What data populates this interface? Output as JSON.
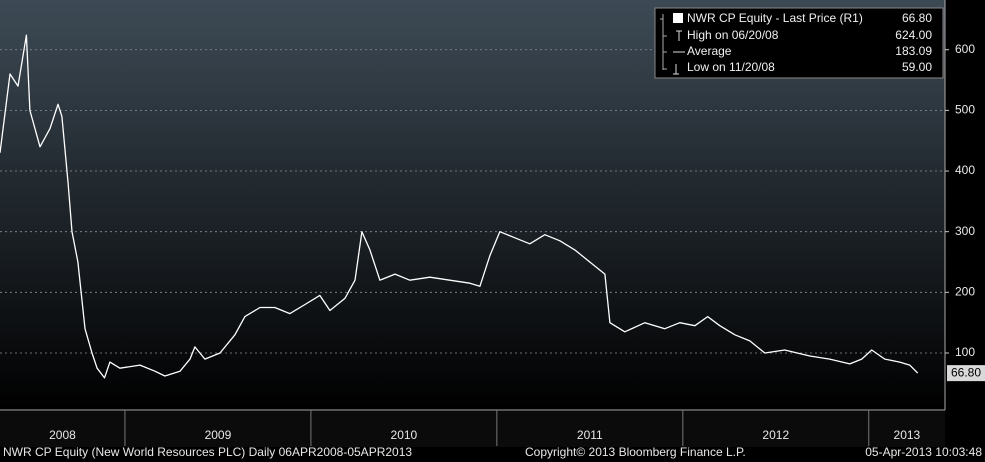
{
  "chart_data": {
    "type": "line",
    "series": [
      {
        "name": "NWR CP Equity - Last Price (R1)",
        "color": "#ffffff",
        "x": [
          2008.328,
          2008.382,
          2008.425,
          2008.47,
          2008.489,
          2008.543,
          2008.597,
          2008.64,
          2008.661,
          2008.694,
          2008.715,
          2008.747,
          2008.785,
          2008.823,
          2008.85,
          2008.89,
          2008.919,
          2008.973,
          2009.081,
          2009.161,
          2009.215,
          2009.296,
          2009.35,
          2009.376,
          2009.43,
          2009.511,
          2009.591,
          2009.645,
          2009.726,
          2009.806,
          2009.887,
          2009.968,
          2010.048,
          2010.102,
          2010.183,
          2010.237,
          2010.274,
          2010.317,
          2010.371,
          2010.452,
          2010.532,
          2010.64,
          2010.747,
          2010.855,
          2010.909,
          2010.962,
          2011.016,
          2011.097,
          2011.177,
          2011.258,
          2011.339,
          2011.419,
          2011.5,
          2011.581,
          2011.608,
          2011.688,
          2011.796,
          2011.903,
          2011.984,
          2012.065,
          2012.134,
          2012.199,
          2012.28,
          2012.36,
          2012.441,
          2012.548,
          2012.683,
          2012.79,
          2012.898,
          2012.962,
          2013.016,
          2013.086,
          2013.167,
          2013.22,
          2013.263
        ],
        "values": [
          430,
          560,
          540,
          624,
          500,
          440,
          470,
          510,
          490,
          380,
          300,
          250,
          140,
          100,
          75,
          59,
          85,
          75,
          80,
          70,
          62,
          70,
          90,
          110,
          90,
          100,
          130,
          160,
          175,
          175,
          165,
          180,
          195,
          170,
          190,
          220,
          300,
          270,
          220,
          230,
          220,
          225,
          220,
          215,
          210,
          260,
          300,
          290,
          280,
          295,
          285,
          270,
          250,
          230,
          150,
          135,
          150,
          140,
          150,
          145,
          160,
          145,
          130,
          120,
          100,
          105,
          95,
          90,
          82,
          90,
          105,
          90,
          85,
          80,
          66.8
        ]
      }
    ],
    "legend": [
      {
        "name": "NWR CP Equity - Last Price (R1)",
        "value": "66.80"
      },
      {
        "name": "High on 06/20/08",
        "value": "624.00"
      },
      {
        "name": "Average",
        "value": "183.09"
      },
      {
        "name": "Low on 11/20/08",
        "value": "59.00"
      }
    ],
    "xlim": [
      2008.328,
      2013.41
    ],
    "xticks": [
      2009,
      2010,
      2011,
      2012,
      2013
    ],
    "year_labels": [
      "2008",
      "2009",
      "2010",
      "2011",
      "2012",
      "2013"
    ],
    "ylim": [
      6,
      682
    ],
    "yticks": [
      100,
      200,
      300,
      400,
      500,
      600
    ],
    "grid": true,
    "footer": {
      "left": "NWR CP Equity (New World Resources PLC)  Daily 06APR2008-05APR2013",
      "center": "Copyright© 2013 Bloomberg Finance L.P.",
      "right": "05-Apr-2013 10:03:48"
    }
  }
}
